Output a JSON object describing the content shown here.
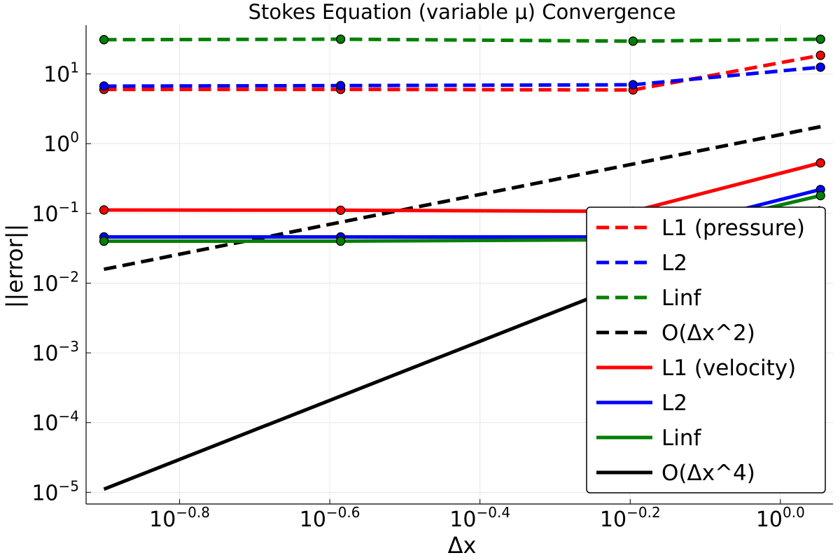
{
  "chart_data": {
    "type": "line",
    "title": "Stokes Equation (variable μ) Convergence",
    "xlabel": "Δx",
    "ylabel": "||error||",
    "x_scale": "log10",
    "y_scale": "log10",
    "xlim": [
      0.119,
      1.175
    ],
    "ylim": [
      6.8e-06,
      50
    ],
    "grid": true,
    "legend_position": "lower-right",
    "x_ticks": [
      {
        "value": 0.1585,
        "base": "10",
        "exp": "−0.8"
      },
      {
        "value": 0.2512,
        "base": "10",
        "exp": "−0.6"
      },
      {
        "value": 0.3981,
        "base": "10",
        "exp": "−0.4"
      },
      {
        "value": 0.631,
        "base": "10",
        "exp": "−0.2"
      },
      {
        "value": 1.0,
        "base": "10",
        "exp": "0.0"
      }
    ],
    "y_ticks": [
      {
        "value": 1e-05,
        "base": "10",
        "exp": "−5"
      },
      {
        "value": 0.0001,
        "base": "10",
        "exp": "−4"
      },
      {
        "value": 0.001,
        "base": "10",
        "exp": "−3"
      },
      {
        "value": 0.01,
        "base": "10",
        "exp": "−2"
      },
      {
        "value": 0.1,
        "base": "10",
        "exp": "−1"
      },
      {
        "value": 1,
        "base": "10",
        "exp": "0"
      },
      {
        "value": 10,
        "base": "10",
        "exp": "1"
      }
    ],
    "series": [
      {
        "name": "L1 (pressure)",
        "color": "#ff0000",
        "dash": true,
        "markers": true,
        "x": [
          0.1257,
          0.2597,
          0.6365,
          1.1309
        ],
        "y": [
          6.0,
          6.0,
          5.9,
          18.5
        ]
      },
      {
        "name": "L2",
        "color": "#0000ff",
        "dash": true,
        "markers": true,
        "x": [
          0.1257,
          0.2597,
          0.6365,
          1.1309
        ],
        "y": [
          6.7,
          6.8,
          7.0,
          12.5
        ]
      },
      {
        "name": "Linf",
        "color": "#008000",
        "dash": true,
        "markers": true,
        "x": [
          0.1257,
          0.2597,
          0.6365,
          1.1309
        ],
        "y": [
          31.0,
          31.5,
          29.5,
          31.5
        ]
      },
      {
        "name": "O(Δx^2)",
        "color": "#000000",
        "dash": true,
        "markers": false,
        "x": [
          0.1257,
          1.1309
        ],
        "y": [
          0.0158,
          1.75
        ]
      },
      {
        "name": "L1 (velocity)",
        "color": "#ff0000",
        "dash": false,
        "markers": true,
        "x": [
          0.1257,
          0.2597,
          0.6365,
          1.1309
        ],
        "y": [
          0.112,
          0.111,
          0.107,
          0.53
        ]
      },
      {
        "name": "L2",
        "color": "#0000ff",
        "dash": false,
        "markers": true,
        "x": [
          0.1257,
          0.2597,
          0.6365,
          1.1309
        ],
        "y": [
          0.046,
          0.046,
          0.046,
          0.22
        ]
      },
      {
        "name": "Linf",
        "color": "#008000",
        "dash": false,
        "markers": true,
        "x": [
          0.1257,
          0.2597,
          0.6365,
          1.1309
        ],
        "y": [
          0.04,
          0.04,
          0.042,
          0.18
        ]
      },
      {
        "name": "O(Δx^4)",
        "color": "#000000",
        "dash": false,
        "markers": false,
        "x": [
          0.1257,
          1.1309
        ],
        "y": [
          1.11e-05,
          0.122
        ]
      }
    ]
  }
}
